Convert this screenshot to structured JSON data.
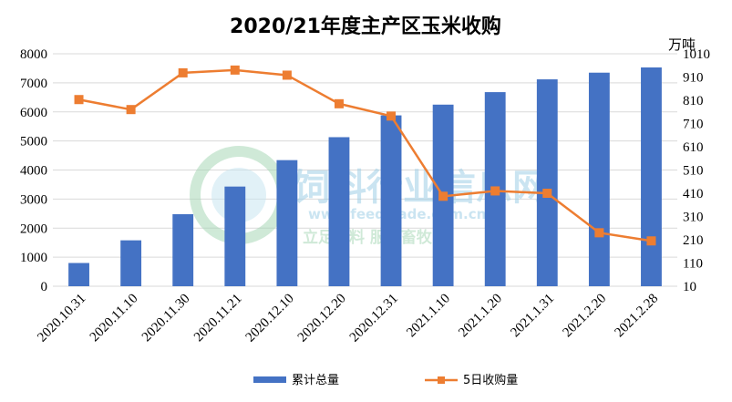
{
  "chart_data": {
    "type": "bar+line",
    "title": "2020/21年度主产区玉米收购",
    "categories": [
      "2020.10.31",
      "2020.11.10",
      "2020.11.30",
      "2020.11.21",
      "2020.12.10",
      "2020.12.20",
      "2020.12.31",
      "2021.1.10",
      "2021.1.20",
      "2021.1.31",
      "2021.2.20",
      "2021.2.28"
    ],
    "left_axis": {
      "ylim": [
        0,
        8000
      ],
      "ticks": [
        "0",
        "1000",
        "2000",
        "3000",
        "4000",
        "5000",
        "6000",
        "7000",
        "8000"
      ]
    },
    "right_axis": {
      "unit": "万吨",
      "ylim": [
        10,
        1010
      ],
      "ticks": [
        "10",
        "110",
        "210",
        "310",
        "410",
        "510",
        "610",
        "710",
        "810",
        "910",
        "1010"
      ]
    },
    "series": [
      {
        "name": "累计总量",
        "type": "bar",
        "axis": "left",
        "color": "#4472c4",
        "values": [
          800,
          1580,
          2480,
          3430,
          4340,
          5130,
          5880,
          6250,
          6680,
          7120,
          7350,
          7530
        ]
      },
      {
        "name": "5日收购量",
        "type": "line",
        "axis": "right",
        "color": "#ed7d31",
        "values": [
          813,
          770,
          928,
          940,
          918,
          795,
          742,
          397,
          420,
          410,
          240,
          205
        ]
      }
    ],
    "legend": "bottom",
    "grid": true
  },
  "watermark": {
    "title": "饲料行业信息网",
    "url": "www.feedtrade.com.cn",
    "slogan": "立足饲料 服务畜牧"
  }
}
